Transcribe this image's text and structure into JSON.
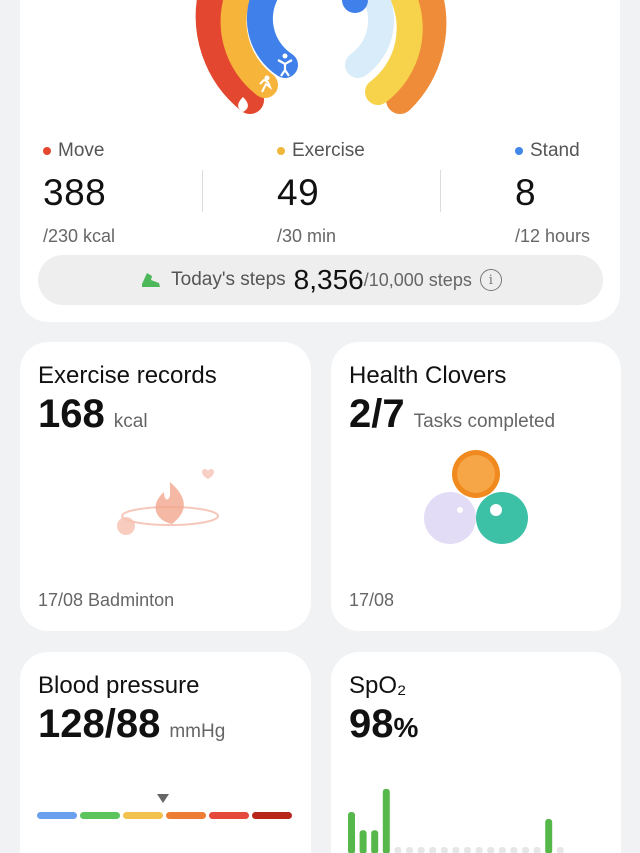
{
  "colors": {
    "move": "#e4472f",
    "exercise": "#f2b63a",
    "stand": "#4286e8",
    "bp_segments": [
      "#6aa0ee",
      "#5bc45a",
      "#f2c14e",
      "#ee7d34",
      "#e5493c",
      "#b8251b"
    ],
    "spo2_bar": "#56b84a"
  },
  "activity": {
    "move": {
      "label": "Move",
      "value": "388",
      "goal": "/230 kcal"
    },
    "exercise": {
      "label": "Exercise",
      "value": "49",
      "goal": "/30 min"
    },
    "stand": {
      "label": "Stand",
      "value": "8",
      "goal": "/12 hours"
    },
    "steps": {
      "label": "Today's steps",
      "value": "8,356",
      "total": "/10,000 steps",
      "icon": "shoe-icon",
      "info_icon": "info-icon",
      "info_glyph": "i"
    }
  },
  "exercise_records": {
    "title": "Exercise records",
    "value": "168",
    "unit": "kcal",
    "footer": "17/08 Badminton",
    "icon": "flame-icon"
  },
  "health_clovers": {
    "title": "Health Clovers",
    "value": "2/7",
    "unit": "Tasks completed",
    "footer": "17/08",
    "icon": "clover-icon"
  },
  "blood_pressure": {
    "title": "Blood pressure",
    "value": "128/88",
    "unit": "mmHg",
    "marker_segment": 3
  },
  "spo2": {
    "title": "SpO₂",
    "value": "98",
    "unit": "%",
    "bar_levels": [
      0.6,
      0.34,
      0.34,
      0.93,
      0.1,
      0.1,
      0.1,
      0.1,
      0.1,
      0.1,
      0.1,
      0.1,
      0.1,
      0.1,
      0.1,
      0.1,
      0.1,
      0.5,
      0.1
    ],
    "active_bars": [
      0,
      1,
      2,
      3,
      17
    ]
  }
}
